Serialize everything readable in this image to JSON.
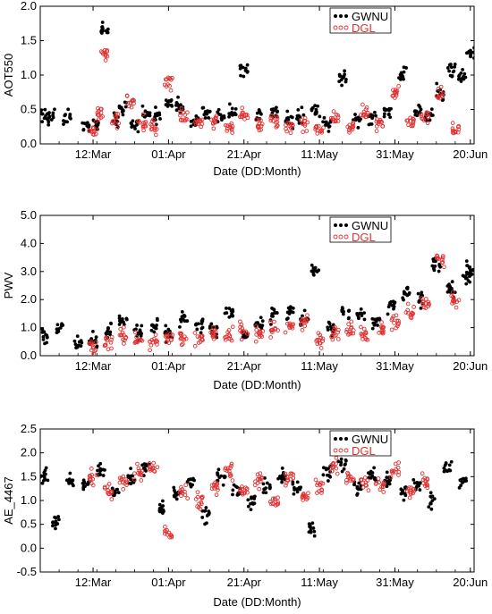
{
  "chart_data": [
    {
      "type": "scatter",
      "title": "",
      "xlabel": "Date (DD:Month)",
      "ylabel": "AOT550",
      "ylim": [
        0.0,
        2.0
      ],
      "yticks": [
        "0.0",
        "0.5",
        "1.0",
        "1.5",
        "2.0"
      ],
      "x_tick_labels": [
        "12:Mar",
        "01:Apr",
        "21:Apr",
        "11:May",
        "31:May",
        "20:Jun"
      ],
      "x_tick_dates": [
        "2016-03-12",
        "2016-04-01",
        "2016-04-21",
        "2016-05-11",
        "2016-05-31",
        "2016-06-20"
      ],
      "xlim": [
        "2016-02-27",
        "2016-06-21"
      ],
      "legend_position": "top-right",
      "series": [
        {
          "name": "GWNU",
          "marker": "filled-circle",
          "color": "#000000",
          "x": [
            "2016-02-28",
            "2016-03-01",
            "2016-03-05",
            "2016-03-10",
            "2016-03-13",
            "2016-03-15",
            "2016-03-18",
            "2016-03-20",
            "2016-03-23",
            "2016-03-26",
            "2016-03-29",
            "2016-04-01",
            "2016-04-04",
            "2016-04-08",
            "2016-04-11",
            "2016-04-15",
            "2016-04-18",
            "2016-04-21",
            "2016-04-25",
            "2016-04-29",
            "2016-05-03",
            "2016-05-06",
            "2016-05-10",
            "2016-05-13",
            "2016-05-17",
            "2016-05-21",
            "2016-05-25",
            "2016-05-29",
            "2016-06-02",
            "2016-06-06",
            "2016-06-09",
            "2016-06-12",
            "2016-06-15",
            "2016-06-18",
            "2016-06-20"
          ],
          "y": [
            0.45,
            0.4,
            0.38,
            0.25,
            0.3,
            1.65,
            0.35,
            0.5,
            0.3,
            0.45,
            0.4,
            0.6,
            0.55,
            0.3,
            0.45,
            0.38,
            0.45,
            1.1,
            0.4,
            0.45,
            0.35,
            0.4,
            0.5,
            0.3,
            0.95,
            0.35,
            0.4,
            0.45,
            1.0,
            0.45,
            0.4,
            0.75,
            1.1,
            1.0,
            1.3
          ]
        },
        {
          "name": "DGL",
          "marker": "open-circle",
          "color": "#e03030",
          "x": [
            "2016-03-12",
            "2016-03-14",
            "2016-03-15",
            "2016-03-18",
            "2016-03-22",
            "2016-03-25",
            "2016-03-28",
            "2016-04-01",
            "2016-04-05",
            "2016-04-09",
            "2016-04-13",
            "2016-04-17",
            "2016-04-21",
            "2016-04-25",
            "2016-04-29",
            "2016-05-03",
            "2016-05-07",
            "2016-05-11",
            "2016-05-15",
            "2016-05-19",
            "2016-05-23",
            "2016-05-27",
            "2016-05-31",
            "2016-06-04",
            "2016-06-08",
            "2016-06-12",
            "2016-06-16"
          ],
          "y": [
            0.2,
            0.45,
            1.3,
            0.35,
            0.6,
            0.3,
            0.25,
            0.9,
            0.4,
            0.3,
            0.35,
            0.25,
            0.4,
            0.3,
            0.35,
            0.25,
            0.3,
            0.2,
            0.35,
            0.25,
            0.45,
            0.3,
            0.75,
            0.3,
            0.4,
            0.7,
            0.2
          ]
        }
      ]
    },
    {
      "type": "scatter",
      "title": "",
      "xlabel": "Date (DD:Month)",
      "ylabel": "PWV",
      "ylim": [
        0.0,
        5.0
      ],
      "yticks": [
        "0.0",
        "1.0",
        "2.0",
        "3.0",
        "4.0",
        "5.0"
      ],
      "x_tick_labels": [
        "12:Mar",
        "01:Apr",
        "21:Apr",
        "11:May",
        "31:May",
        "20:Jun"
      ],
      "x_tick_dates": [
        "2016-03-12",
        "2016-04-01",
        "2016-04-21",
        "2016-05-11",
        "2016-05-31",
        "2016-06-20"
      ],
      "xlim": [
        "2016-02-27",
        "2016-06-21"
      ],
      "legend_position": "top-right",
      "series": [
        {
          "name": "GWNU",
          "marker": "filled-circle",
          "color": "#000000",
          "x": [
            "2016-02-28",
            "2016-03-03",
            "2016-03-08",
            "2016-03-12",
            "2016-03-16",
            "2016-03-20",
            "2016-03-24",
            "2016-03-28",
            "2016-04-01",
            "2016-04-05",
            "2016-04-09",
            "2016-04-13",
            "2016-04-17",
            "2016-04-21",
            "2016-04-25",
            "2016-04-29",
            "2016-05-03",
            "2016-05-07",
            "2016-05-10",
            "2016-05-14",
            "2016-05-18",
            "2016-05-22",
            "2016-05-26",
            "2016-05-30",
            "2016-06-03",
            "2016-06-07",
            "2016-06-11",
            "2016-06-15",
            "2016-06-19",
            "2016-06-20"
          ],
          "y": [
            0.75,
            1.0,
            0.4,
            0.55,
            0.9,
            1.2,
            0.8,
            1.0,
            0.8,
            1.3,
            1.1,
            0.9,
            1.5,
            0.8,
            1.1,
            1.4,
            1.6,
            1.3,
            3.0,
            1.0,
            1.6,
            1.4,
            1.2,
            1.8,
            2.3,
            2.0,
            3.3,
            2.4,
            2.8,
            3.1
          ]
        },
        {
          "name": "DGL",
          "marker": "open-circle",
          "color": "#e03030",
          "x": [
            "2016-03-12",
            "2016-03-16",
            "2016-03-20",
            "2016-03-24",
            "2016-03-28",
            "2016-04-01",
            "2016-04-05",
            "2016-04-09",
            "2016-04-13",
            "2016-04-17",
            "2016-04-21",
            "2016-04-25",
            "2016-04-29",
            "2016-05-03",
            "2016-05-07",
            "2016-05-11",
            "2016-05-15",
            "2016-05-19",
            "2016-05-23",
            "2016-05-27",
            "2016-05-31",
            "2016-06-04",
            "2016-06-08",
            "2016-06-12",
            "2016-06-16"
          ],
          "y": [
            0.3,
            0.5,
            0.7,
            0.6,
            0.5,
            0.6,
            0.7,
            0.6,
            0.8,
            0.7,
            0.9,
            0.8,
            0.9,
            1.0,
            1.2,
            0.5,
            0.8,
            0.9,
            0.7,
            0.9,
            1.2,
            1.6,
            1.8,
            3.4,
            2.0
          ]
        }
      ]
    },
    {
      "type": "scatter",
      "title": "",
      "xlabel": "Date (DD:Month)",
      "ylabel": "AE_4467",
      "ylim": [
        -0.5,
        2.5
      ],
      "yticks": [
        "-0.5",
        "0.0",
        "0.5",
        "1.0",
        "1.5",
        "2.0",
        "2.5"
      ],
      "x_tick_labels": [
        "12:Mar",
        "01:Apr",
        "21:Apr",
        "11:May",
        "31:May",
        "20:Jun"
      ],
      "x_tick_dates": [
        "2016-03-12",
        "2016-04-01",
        "2016-04-21",
        "2016-05-11",
        "2016-05-31",
        "2016-06-20"
      ],
      "xlim": [
        "2016-02-27",
        "2016-06-21"
      ],
      "legend_position": "top-right",
      "series": [
        {
          "name": "GWNU",
          "marker": "filled-circle",
          "color": "#000000",
          "x": [
            "2016-02-28",
            "2016-03-02",
            "2016-03-06",
            "2016-03-10",
            "2016-03-14",
            "2016-03-18",
            "2016-03-22",
            "2016-03-26",
            "2016-03-30",
            "2016-04-03",
            "2016-04-07",
            "2016-04-11",
            "2016-04-15",
            "2016-04-19",
            "2016-04-23",
            "2016-04-27",
            "2016-05-01",
            "2016-05-05",
            "2016-05-09",
            "2016-05-13",
            "2016-05-17",
            "2016-05-21",
            "2016-05-25",
            "2016-05-29",
            "2016-06-02",
            "2016-06-06",
            "2016-06-10",
            "2016-06-14",
            "2016-06-18"
          ],
          "y": [
            1.5,
            0.6,
            1.4,
            1.3,
            1.6,
            1.2,
            1.5,
            1.7,
            0.8,
            1.1,
            1.4,
            0.7,
            1.5,
            1.2,
            1.0,
            1.3,
            1.5,
            1.2,
            0.4,
            1.6,
            1.8,
            1.3,
            1.5,
            1.4,
            1.2,
            1.3,
            1.0,
            1.7,
            1.4
          ]
        },
        {
          "name": "DGL",
          "marker": "open-circle",
          "color": "#e03030",
          "x": [
            "2016-03-12",
            "2016-03-16",
            "2016-03-20",
            "2016-03-24",
            "2016-03-28",
            "2016-04-01",
            "2016-04-05",
            "2016-04-09",
            "2016-04-13",
            "2016-04-17",
            "2016-04-21",
            "2016-04-25",
            "2016-04-29",
            "2016-05-03",
            "2016-05-07",
            "2016-05-11",
            "2016-05-15",
            "2016-05-19",
            "2016-05-23",
            "2016-05-27",
            "2016-05-31",
            "2016-06-04",
            "2016-06-08"
          ],
          "y": [
            1.5,
            1.2,
            1.4,
            1.6,
            1.7,
            0.3,
            1.2,
            1.0,
            1.3,
            1.6,
            1.2,
            1.4,
            1.0,
            1.5,
            1.1,
            1.3,
            1.7,
            1.5,
            1.4,
            1.3,
            1.6,
            1.2,
            1.4
          ]
        }
      ]
    }
  ]
}
